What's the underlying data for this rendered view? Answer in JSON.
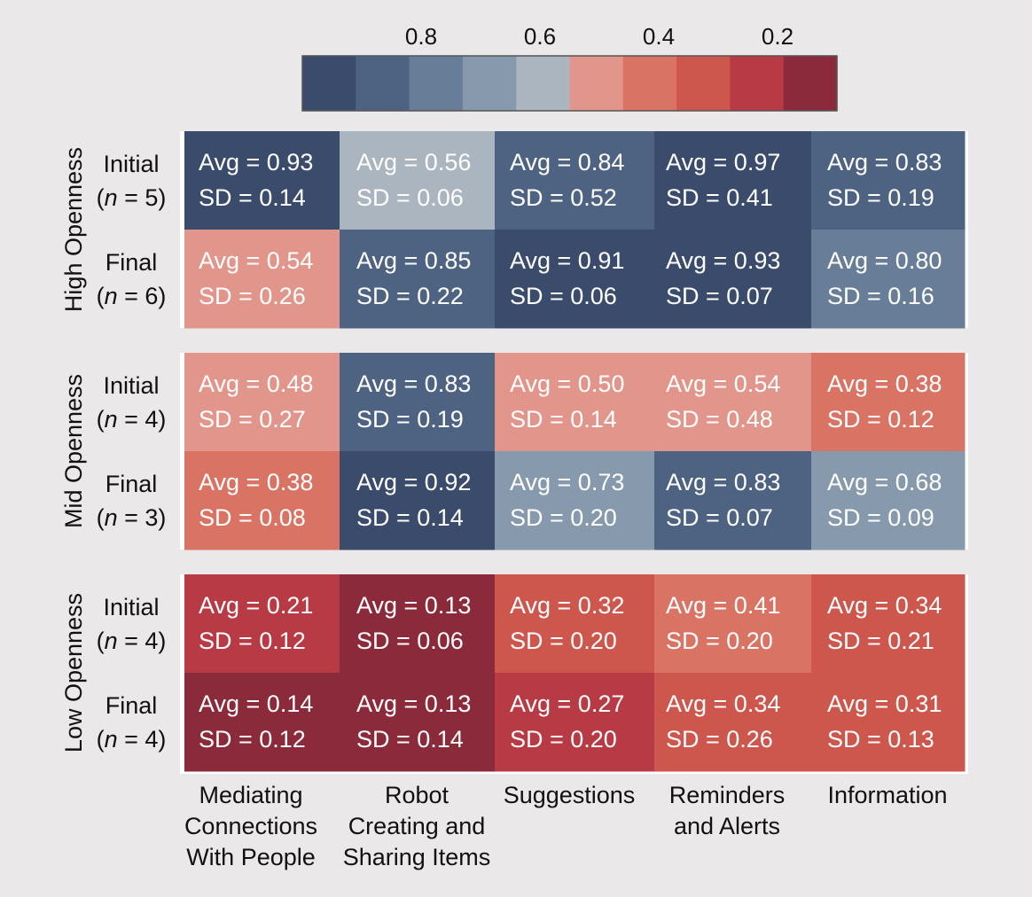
{
  "chart_data": {
    "type": "heatmap",
    "title": "",
    "columns": [
      [
        "Mediating",
        "Connections",
        "With People"
      ],
      [
        "Robot",
        "Creating and",
        "Sharing Items"
      ],
      [
        "Suggestions"
      ],
      [
        "Reminders",
        "and Alerts"
      ],
      [
        "Information"
      ]
    ],
    "colorbar": {
      "ticks": [
        "0.8",
        "0.6",
        "0.4",
        "0.2"
      ],
      "tick_values": [
        0.8,
        0.6,
        0.4,
        0.2
      ],
      "range": [
        0.1,
        1.0
      ],
      "direction": "descending",
      "colors": [
        "#3a4b6c",
        "#4e6382",
        "#687e98",
        "#8799ac",
        "#aab5bf",
        "#e2958a",
        "#d97465",
        "#cd564d",
        "#b73a44",
        "#8b2a3a"
      ]
    },
    "groups": [
      {
        "name": "High Openness",
        "rows": [
          {
            "label": "Initial",
            "n": "5",
            "avg": [
              0.93,
              0.56,
              0.84,
              0.97,
              0.83
            ],
            "sd": [
              0.14,
              0.06,
              0.52,
              0.41,
              0.19
            ]
          },
          {
            "label": "Final",
            "n": "6",
            "avg": [
              0.54,
              0.85,
              0.91,
              0.93,
              0.8
            ],
            "sd": [
              0.26,
              0.22,
              0.06,
              0.07,
              0.16
            ]
          }
        ]
      },
      {
        "name": "Mid Openness",
        "rows": [
          {
            "label": "Initial",
            "n": "4",
            "avg": [
              0.48,
              0.83,
              0.5,
              0.54,
              0.38
            ],
            "sd": [
              0.27,
              0.19,
              0.14,
              0.48,
              0.12
            ]
          },
          {
            "label": "Final",
            "n": "3",
            "avg": [
              0.38,
              0.92,
              0.73,
              0.83,
              0.68
            ],
            "sd": [
              0.08,
              0.14,
              0.2,
              0.07,
              0.09
            ]
          }
        ]
      },
      {
        "name": "Low Openness",
        "rows": [
          {
            "label": "Initial",
            "n": "4",
            "avg": [
              0.21,
              0.13,
              0.32,
              0.41,
              0.34
            ],
            "sd": [
              0.12,
              0.06,
              0.2,
              0.2,
              0.21
            ]
          },
          {
            "label": "Final",
            "n": "4",
            "avg": [
              0.14,
              0.13,
              0.27,
              0.34,
              0.31
            ],
            "sd": [
              0.12,
              0.14,
              0.2,
              0.26,
              0.13
            ]
          }
        ]
      }
    ],
    "cell_format": {
      "avg_prefix": "Avg = ",
      "sd_prefix": "SD = "
    }
  }
}
